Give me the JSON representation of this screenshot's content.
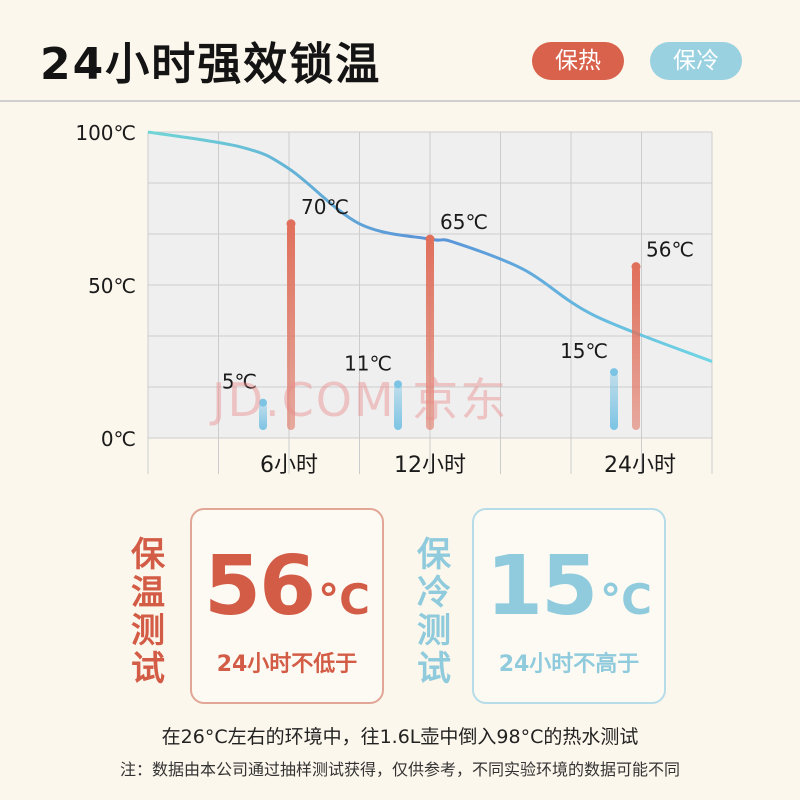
{
  "header": {
    "title": "24小时强效锁温",
    "tag_hot": "保热",
    "tag_cold": "保冷"
  },
  "chart_data": {
    "type": "line",
    "y_ticks": [
      "100℃",
      "50℃",
      "0℃"
    ],
    "ylim": [
      0,
      100
    ],
    "x_ticks": [
      {
        "hour": 6,
        "label": "6小时"
      },
      {
        "hour": 12,
        "label": "12小时"
      },
      {
        "hour": 24,
        "label": "24小时"
      }
    ],
    "grid": true,
    "curve": [
      {
        "x": 0,
        "y": 100
      },
      {
        "x": 4,
        "y": 95
      },
      {
        "x": 6,
        "y": 88
      },
      {
        "x": 9,
        "y": 70
      },
      {
        "x": 12,
        "y": 65
      },
      {
        "x": 13,
        "y": 64
      },
      {
        "x": 16,
        "y": 55
      },
      {
        "x": 19,
        "y": 40
      },
      {
        "x": 24,
        "y": 25
      }
    ],
    "hot_series": [
      {
        "hour": 6,
        "value": 70,
        "label": "70℃"
      },
      {
        "hour": 12,
        "value": 65,
        "label": "65℃"
      },
      {
        "hour": 24,
        "value": 56,
        "label": "56℃"
      }
    ],
    "cold_series": [
      {
        "hour": 6,
        "value": 5,
        "label": "5℃"
      },
      {
        "hour": 12,
        "value": 11,
        "label": "11℃"
      },
      {
        "hour": 24,
        "value": 15,
        "label": "15℃"
      }
    ],
    "colors": {
      "hot": "#e0705c",
      "cold": "#7cc4e4",
      "curve_start": "#6fd6d6",
      "curve_mid": "#5a92d8",
      "curve_end": "#6fd6e4",
      "grid": "#cccccc",
      "plot_bg": "#efefef"
    }
  },
  "watermark": "JD.COM 京东",
  "hot_box": {
    "vertical_label": [
      "保",
      "温",
      "测",
      "试"
    ],
    "value": "56",
    "unit": "°C",
    "caption": "24小时不低于"
  },
  "cold_box": {
    "vertical_label": [
      "保",
      "冷",
      "测",
      "试"
    ],
    "value": "15",
    "unit": "°C",
    "caption": "24小时不高于"
  },
  "notes": {
    "line1": "在26°C左右的环境中，往1.6L壶中倒入98°C的热水测试",
    "line2": "注：数据由本公司通过抽样测试获得，仅供参考，不同实验环境的数据可能不同"
  }
}
